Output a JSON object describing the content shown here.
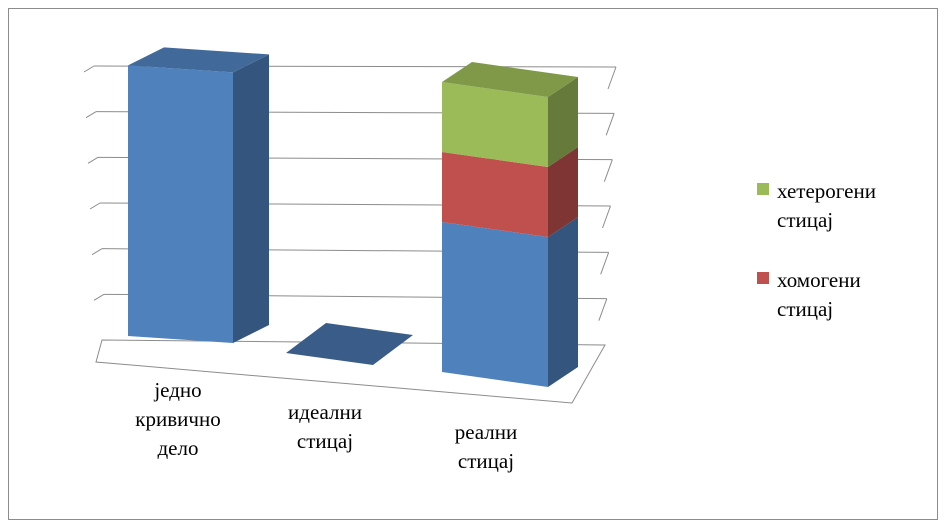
{
  "chart_data": {
    "type": "bar",
    "stacked": true,
    "three_d": true,
    "categories": [
      "једно кривично дело",
      "идеални стицај",
      "реални стицај"
    ],
    "category_lines": [
      [
        "једно",
        "кривично",
        "дело"
      ],
      [
        "идеални",
        "стицај"
      ],
      [
        "реални",
        "стицај"
      ]
    ],
    "series": [
      {
        "values": [
          5.5,
          0,
          3.0
        ],
        "color": "#4f81bd"
      },
      {
        "name": "хомогени стицај",
        "name_lines": [
          "хомогени",
          "стицај"
        ],
        "values": [
          0,
          0,
          1.4
        ],
        "color": "#c0504d"
      },
      {
        "name": "хетерогени стицај",
        "name_lines": [
          "хетерогени",
          "стицај"
        ],
        "values": [
          0,
          0,
          1.4
        ],
        "color": "#9bbb59"
      }
    ],
    "ylim": [
      0,
      6
    ],
    "grid": true,
    "legend": "right"
  }
}
